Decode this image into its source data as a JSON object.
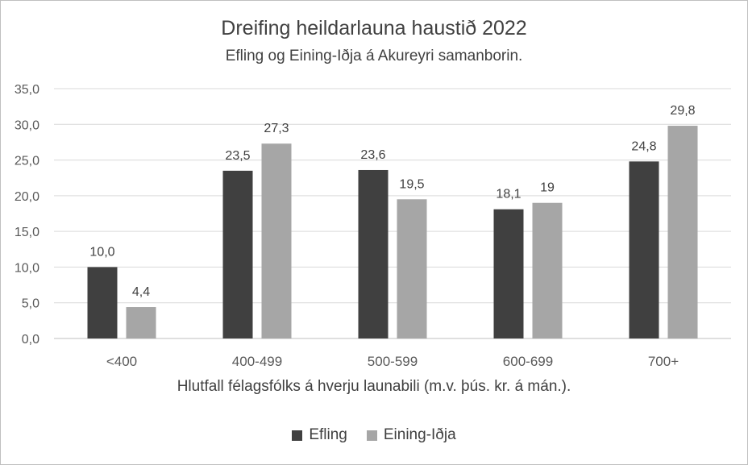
{
  "chart_data": {
    "type": "bar",
    "title": "Dreifing heildarlauna haustið 2022",
    "subtitle": "Efling og Eining-Iðja á Akureyri samanborin.",
    "xlabel": "Hlutfall félagsfólks á hverju launabili (m.v. þús. kr. á mán.).",
    "ylabel": "",
    "categories": [
      "<400",
      "400-499",
      "500-599",
      "600-699",
      "700+"
    ],
    "ylim": [
      0,
      35
    ],
    "yticks": [
      "0,0",
      "5,0",
      "10,0",
      "15,0",
      "20,0",
      "25,0",
      "30,0",
      "35,0"
    ],
    "grid": true,
    "legend_position": "bottom",
    "series": [
      {
        "name": "Efling",
        "color": "#404040",
        "values": [
          10.0,
          23.5,
          23.6,
          18.1,
          24.8
        ],
        "labels": [
          "10,0",
          "23,5",
          "23,6",
          "18,1",
          "24,8"
        ]
      },
      {
        "name": "Eining-Iðja",
        "color": "#a6a6a6",
        "values": [
          4.4,
          27.3,
          19.5,
          19.0,
          29.8
        ],
        "labels": [
          "4,4",
          "27,3",
          "19,5",
          "19",
          "29,8"
        ]
      }
    ]
  }
}
